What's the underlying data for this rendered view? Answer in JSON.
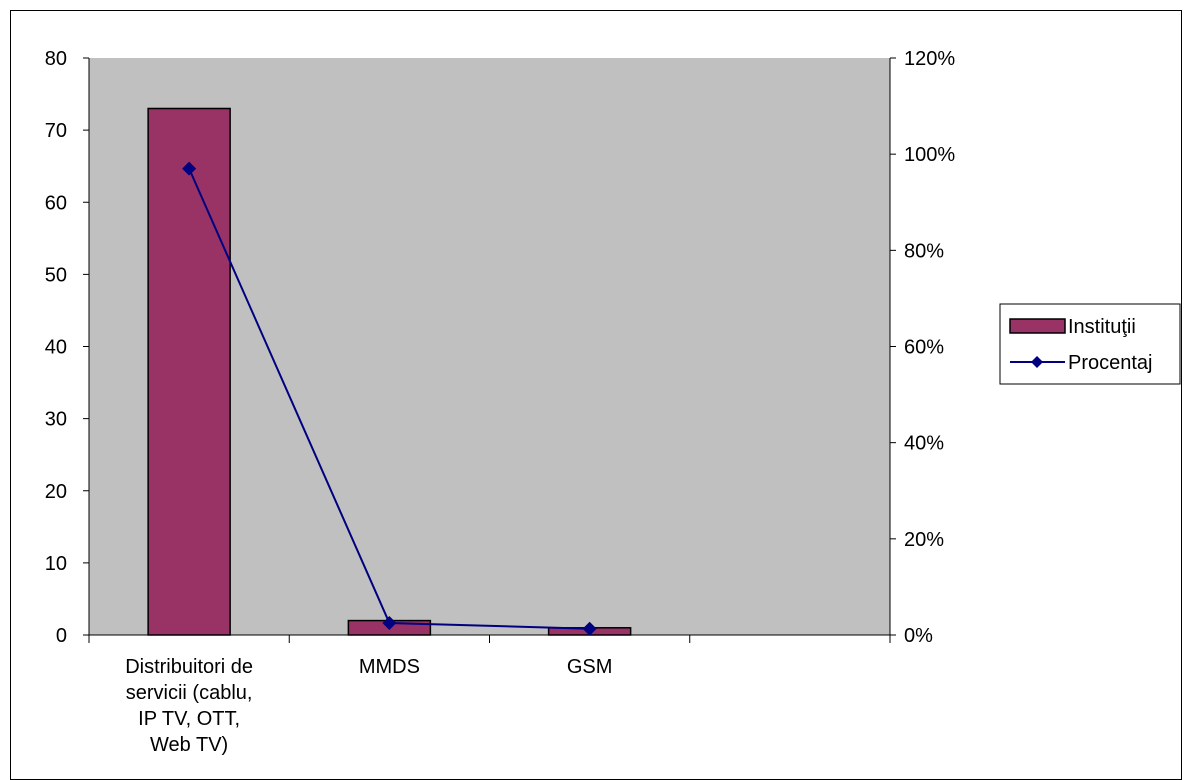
{
  "chart_data": {
    "type": "bar",
    "categories": [
      [
        "Distribuitori de",
        "servicii  (cablu,",
        "IP TV, OTT,",
        "Web TV)"
      ],
      [
        "MMDS"
      ],
      [
        "GSM"
      ],
      []
    ],
    "series": [
      {
        "name": "Instituţii",
        "type": "bar",
        "axis": "left",
        "color": "#993366",
        "values": [
          73,
          2,
          1,
          null
        ]
      },
      {
        "name": "Procentaj",
        "type": "line",
        "axis": "right",
        "color": "#000080",
        "values": [
          0.97,
          0.025,
          0.013,
          null
        ]
      }
    ],
    "y_left": {
      "min": 0,
      "max": 80,
      "step": 10,
      "tick_labels": [
        "0",
        "10",
        "20",
        "30",
        "40",
        "50",
        "60",
        "70",
        "80"
      ]
    },
    "y_right": {
      "min": 0,
      "max": 1.2,
      "step": 0.2,
      "tick_labels": [
        "0%",
        "20%",
        "40%",
        "60%",
        "80%",
        "100%",
        "120%"
      ]
    },
    "plot_background": "#c0c0c0",
    "grid": false,
    "legend_position": "right",
    "legend": {
      "items": [
        {
          "label": "Instituţii",
          "kind": "bar",
          "color": "#993366"
        },
        {
          "label": "Procentaj",
          "kind": "line-diamond",
          "color": "#000080"
        }
      ]
    }
  }
}
